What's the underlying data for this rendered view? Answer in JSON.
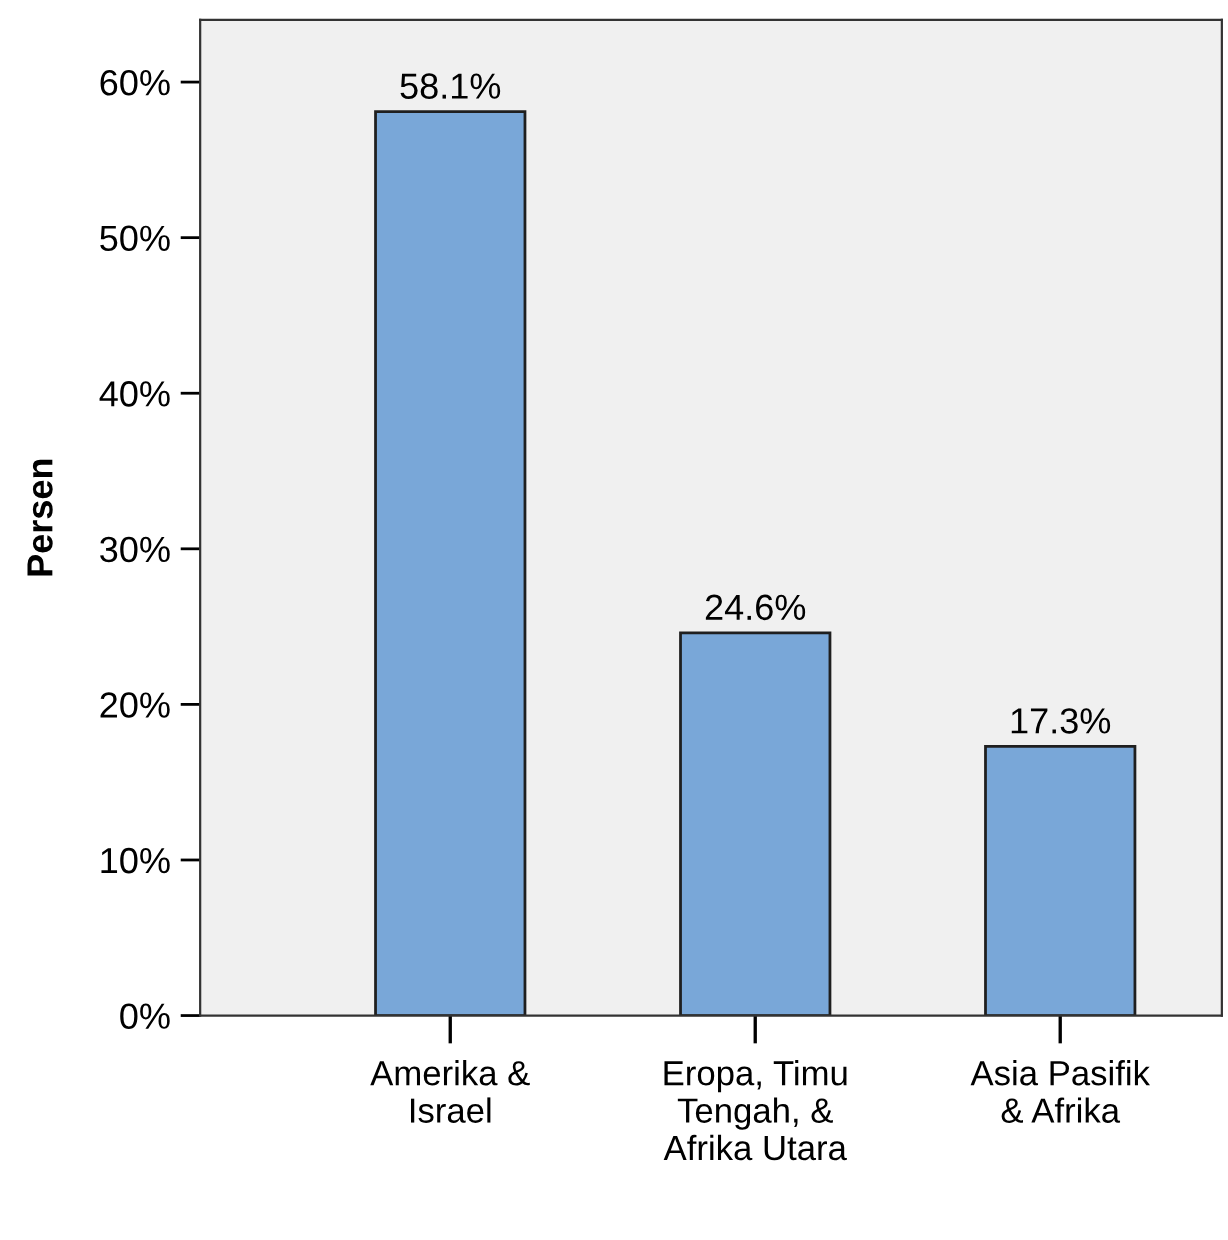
{
  "chart_data": {
    "type": "bar",
    "ylabel": "Persen",
    "categories": [
      "Amerika &\nIsrael",
      "Eropa, Timu\nTengah, &\nAfrika Utara",
      "Asia Pasifik\n& Afrika"
    ],
    "values": [
      58.1,
      24.6,
      17.3
    ],
    "value_labels": [
      "58.1%",
      "24.6%",
      "17.3%"
    ],
    "color": "#79a7d8",
    "ylim": [
      0,
      64
    ],
    "yticks": [
      {
        "value": 0,
        "label": "0%"
      },
      {
        "value": 10,
        "label": "10%"
      },
      {
        "value": 20,
        "label": "20%"
      },
      {
        "value": 30,
        "label": "30%"
      },
      {
        "value": 40,
        "label": "40%"
      },
      {
        "value": 50,
        "label": "50%"
      },
      {
        "value": 60,
        "label": "60%"
      }
    ],
    "grid": false
  }
}
